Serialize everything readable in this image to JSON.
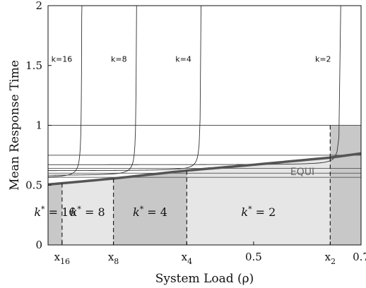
{
  "chart_data": {
    "type": "line",
    "xlabel": "System Load (ρ)",
    "ylabel": "Mean Response Time",
    "xlim": [
      0.06,
      0.73
    ],
    "ylim": [
      0,
      2
    ],
    "yticks": [
      0,
      0.5,
      1,
      1.5,
      2
    ],
    "ytick_labels": [
      "0",
      "0.5",
      "1",
      "1.5",
      "2"
    ],
    "xticks": [
      {
        "value": 0.09,
        "label": "x",
        "sub": "16"
      },
      {
        "value": 0.2,
        "label": "x",
        "sub": "8"
      },
      {
        "value": 0.357,
        "label": "x",
        "sub": "4"
      },
      {
        "value": 0.5,
        "label": "0.5",
        "sub": ""
      },
      {
        "value": 0.664,
        "label": "x",
        "sub": "2"
      },
      {
        "value": 0.73,
        "label": "0.7",
        "sub": ""
      }
    ],
    "region_boundaries": [
      0.06,
      0.09,
      0.2,
      0.357,
      0.664,
      0.73
    ],
    "regions": [
      {
        "label": "k* = 16",
        "shade": "#c8c8c8"
      },
      {
        "label": "k* = 8",
        "shade": "#e6e6e6"
      },
      {
        "label": "k* = 4",
        "shade": "#c8c8c8"
      },
      {
        "label": "k* = 2",
        "shade": "#e6e6e6"
      },
      {
        "label": "",
        "shade": "#c8c8c8"
      }
    ],
    "equi": {
      "name": "EQUI",
      "x": [
        0.06,
        0.2,
        0.357,
        0.5,
        0.664,
        0.73
      ],
      "y": [
        0.505,
        0.555,
        0.622,
        0.67,
        0.73,
        0.765
      ]
    },
    "k_curves": [
      {
        "name": "k=16",
        "k": 16,
        "base": 0.56,
        "asymptote": 0.133
      },
      {
        "name": "k=8",
        "k": 8,
        "base": 0.58,
        "asymptote": 0.25
      },
      {
        "name": "k=4",
        "k": 4,
        "base": 0.62,
        "asymptote": 0.388
      },
      {
        "name": "k=2",
        "k": 2,
        "base": 0.67,
        "asymptote": 0.687
      }
    ],
    "step_levels": [
      0.565,
      0.6,
      0.64,
      0.75,
      1.0
    ]
  }
}
